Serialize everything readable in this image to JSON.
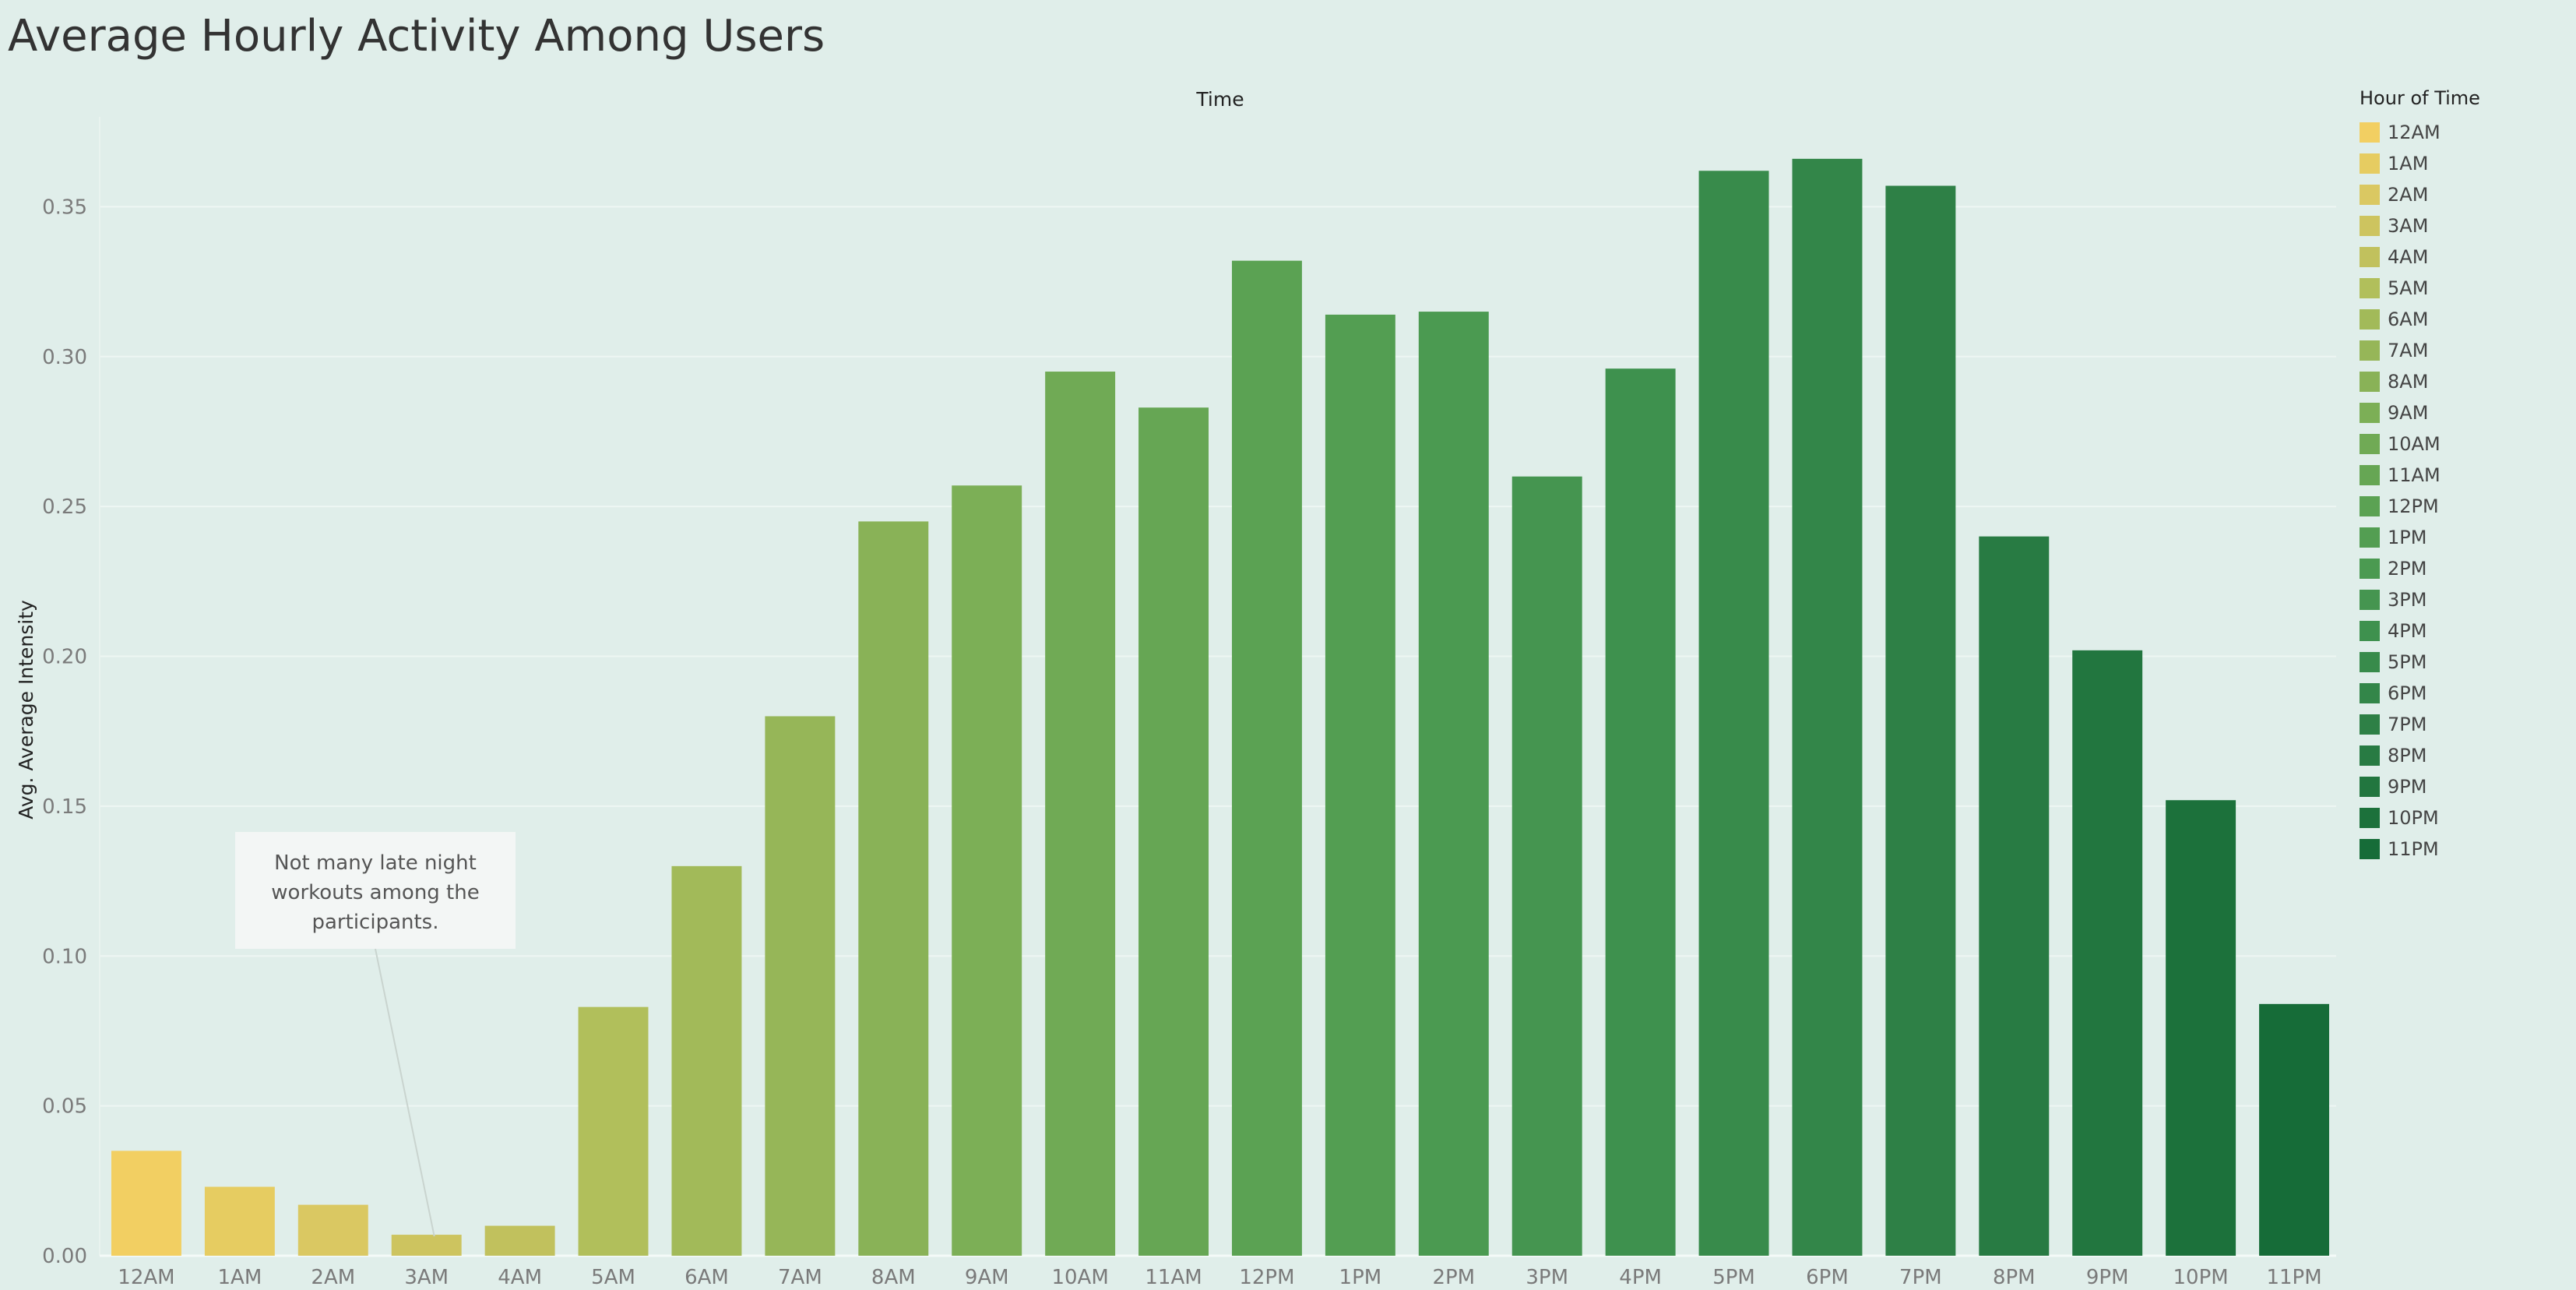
{
  "title": "Average Hourly Activity Among Users",
  "legend": {
    "title": "Hour of Time",
    "items": [
      {
        "label": "12AM",
        "color": "#f2cf62"
      },
      {
        "label": "1AM",
        "color": "#e6cc61"
      },
      {
        "label": "2AM",
        "color": "#dac862"
      },
      {
        "label": "3AM",
        "color": "#cdc45f"
      },
      {
        "label": "4AM",
        "color": "#c1c15d"
      },
      {
        "label": "5AM",
        "color": "#b1bf5b"
      },
      {
        "label": "6AM",
        "color": "#a2ba59"
      },
      {
        "label": "7AM",
        "color": "#96b658"
      },
      {
        "label": "8AM",
        "color": "#89b257"
      },
      {
        "label": "9AM",
        "color": "#7caf56"
      },
      {
        "label": "10AM",
        "color": "#70aa55"
      },
      {
        "label": "11AM",
        "color": "#66a654"
      },
      {
        "label": "12PM",
        "color": "#5ba253"
      },
      {
        "label": "1PM",
        "color": "#539e52"
      },
      {
        "label": "2PM",
        "color": "#4b9a51"
      },
      {
        "label": "3PM",
        "color": "#459550"
      },
      {
        "label": "4PM",
        "color": "#3e914e"
      },
      {
        "label": "5PM",
        "color": "#388b4b"
      },
      {
        "label": "6PM",
        "color": "#338649"
      },
      {
        "label": "7PM",
        "color": "#2e8046"
      },
      {
        "label": "8PM",
        "color": "#287b43"
      },
      {
        "label": "9PM",
        "color": "#22763f"
      },
      {
        "label": "10PM",
        "color": "#1c713b"
      },
      {
        "label": "11PM",
        "color": "#166c38"
      }
    ]
  },
  "annotation": {
    "lines": [
      "Not many late night",
      "workouts among the",
      "participants."
    ]
  },
  "chart_data": {
    "type": "bar",
    "title": "Average Hourly Activity Among Users",
    "xlabel": "Time",
    "ylabel": "Avg. Average Intensity",
    "categories": [
      "12AM",
      "1AM",
      "2AM",
      "3AM",
      "4AM",
      "5AM",
      "6AM",
      "7AM",
      "8AM",
      "9AM",
      "10AM",
      "11AM",
      "12PM",
      "1PM",
      "2PM",
      "3PM",
      "4PM",
      "5PM",
      "6PM",
      "7PM",
      "8PM",
      "9PM",
      "10PM",
      "11PM"
    ],
    "values": [
      0.035,
      0.023,
      0.017,
      0.007,
      0.01,
      0.083,
      0.13,
      0.18,
      0.245,
      0.257,
      0.295,
      0.283,
      0.332,
      0.314,
      0.315,
      0.26,
      0.296,
      0.362,
      0.366,
      0.357,
      0.24,
      0.202,
      0.152,
      0.084
    ],
    "ylim": [
      0,
      0.38
    ],
    "yticks": [
      "0.00",
      "0.05",
      "0.10",
      "0.15",
      "0.20",
      "0.25",
      "0.30",
      "0.35"
    ],
    "ytick_values": [
      0,
      0.05,
      0.1,
      0.15,
      0.2,
      0.25,
      0.3,
      0.35
    ],
    "grid": true,
    "legend_position": "right"
  }
}
